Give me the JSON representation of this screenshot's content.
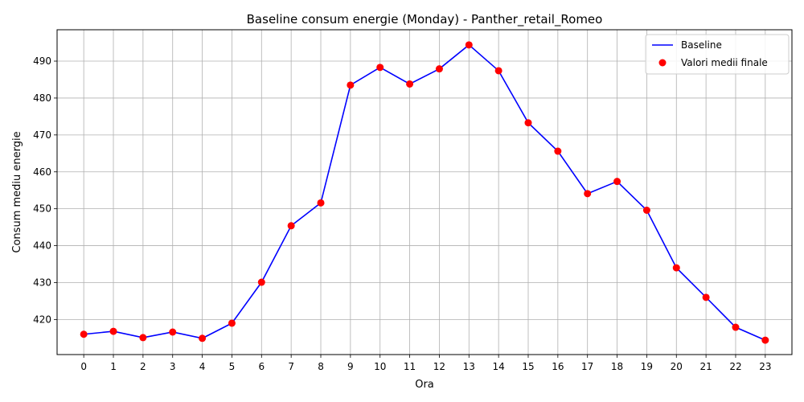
{
  "chart_data": {
    "type": "line",
    "title": "Baseline consum energie (Monday) - Panther_retail_Romeo",
    "xlabel": "Ora",
    "ylabel": "Consum mediu energie",
    "x": [
      0,
      1,
      2,
      3,
      4,
      5,
      6,
      7,
      8,
      9,
      10,
      11,
      12,
      13,
      14,
      15,
      16,
      17,
      18,
      19,
      20,
      21,
      22,
      23
    ],
    "x_ticks": [
      "0",
      "1",
      "2",
      "3",
      "4",
      "5",
      "6",
      "7",
      "8",
      "9",
      "10",
      "11",
      "12",
      "13",
      "14",
      "15",
      "16",
      "17",
      "18",
      "19",
      "20",
      "21",
      "22",
      "23"
    ],
    "y_ticks": [
      420,
      430,
      440,
      450,
      460,
      470,
      480,
      490
    ],
    "xlim": [
      -0.9,
      23.9
    ],
    "ylim": [
      410.5,
      498.5
    ],
    "grid": true,
    "legend_position": "top-right",
    "series": [
      {
        "name": "Baseline",
        "kind": "line",
        "color": "#0000ff",
        "values": [
          416.0,
          416.8,
          415.1,
          416.6,
          414.9,
          419.0,
          430.1,
          445.4,
          451.6,
          483.5,
          488.3,
          483.8,
          487.9,
          494.4,
          487.4,
          473.3,
          465.6,
          454.1,
          457.4,
          449.6,
          434.0,
          426.0,
          417.9,
          414.4
        ]
      },
      {
        "name": "Valori medii finale",
        "kind": "scatter",
        "color": "#ff0000",
        "values": [
          416.0,
          416.8,
          415.1,
          416.6,
          414.9,
          419.0,
          430.1,
          445.4,
          451.6,
          483.5,
          488.3,
          483.8,
          487.9,
          494.4,
          487.4,
          473.3,
          465.6,
          454.1,
          457.4,
          449.6,
          434.0,
          426.0,
          417.9,
          414.4
        ]
      }
    ]
  }
}
